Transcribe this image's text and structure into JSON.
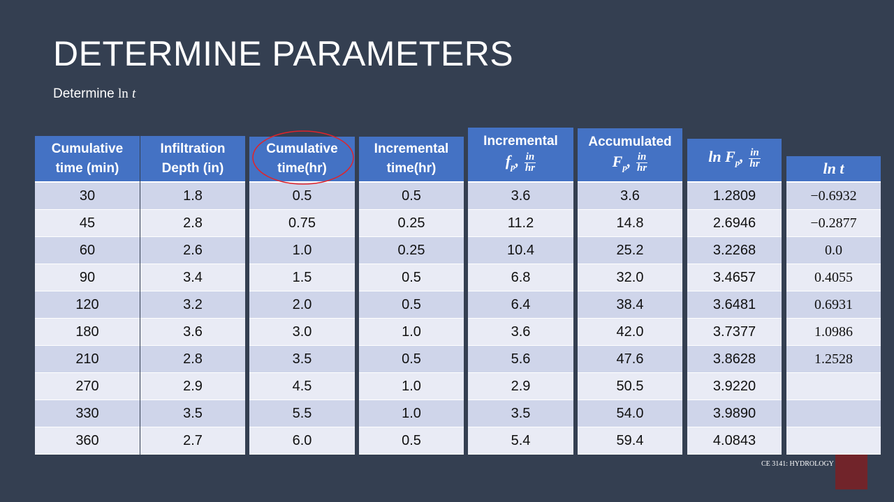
{
  "title": "DETERMINE PARAMETERS",
  "subtitle": {
    "text": "Determine",
    "fn": "ln",
    "var": "t"
  },
  "columns": [
    {
      "header": {
        "lines": [
          "Cumulative",
          "time (min)"
        ]
      },
      "values": [
        "30",
        "45",
        "60",
        "90",
        "120",
        "180",
        "210",
        "270",
        "330",
        "360"
      ]
    },
    {
      "header": {
        "lines": [
          "Infiltration",
          "Depth (in)"
        ]
      },
      "values": [
        "1.8",
        "2.8",
        "2.6",
        "3.4",
        "3.2",
        "3.6",
        "2.8",
        "2.9",
        "3.5",
        "2.7"
      ]
    },
    {
      "header": {
        "lines": [
          "Cumulative",
          "time(hr)"
        ]
      },
      "values": [
        "0.5",
        "0.75",
        "1.0",
        "1.5",
        "2.0",
        "3.0",
        "3.5",
        "4.5",
        "5.5",
        "6.0"
      ]
    },
    {
      "header": {
        "lines": [
          "Incremental",
          "time(hr)"
        ]
      },
      "values": [
        "0.5",
        "0.25",
        "0.25",
        "0.5",
        "0.5",
        "1.0",
        "0.5",
        "1.0",
        "1.0",
        "0.5"
      ]
    },
    {
      "header": {
        "lines": [
          "Incremental"
        ],
        "var": "f",
        "sub": "p",
        "num": "in",
        "den": "hr"
      },
      "values": [
        "3.6",
        "11.2",
        "10.4",
        "6.8",
        "6.4",
        "3.6",
        "5.6",
        "2.9",
        "3.5",
        "5.4"
      ]
    },
    {
      "header": {
        "lines": [
          "Accumulated"
        ],
        "var": "F",
        "sub": "p",
        "num": "in",
        "den": "hr"
      },
      "values": [
        "3.6",
        "14.8",
        "25.2",
        "32.0",
        "38.4",
        "42.0",
        "47.6",
        "50.5",
        "54.0",
        "59.4"
      ]
    },
    {
      "header": {
        "fn": "ln",
        "var": "F",
        "sub": "p",
        "num": "in",
        "den": "hr"
      },
      "values": [
        "1.2809",
        "2.6946",
        "3.2268",
        "3.4657",
        "3.6481",
        "3.7377",
        "3.8628",
        "3.9220",
        "3.9890",
        "4.0843"
      ]
    },
    {
      "header": {
        "fn": "ln",
        "var": "t"
      },
      "values": [
        "−0.6932",
        "−0.2877",
        "0.0",
        "0.4055",
        "0.6931",
        "1.0986",
        "1.2528"
      ]
    }
  ],
  "footer": "CE 3141: HYDROLOGY"
}
